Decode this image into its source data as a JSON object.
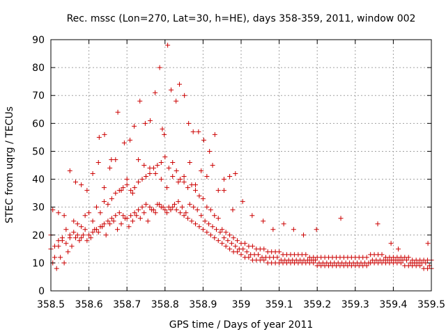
{
  "chart_data": {
    "type": "scatter",
    "title": "Rec. mssc (Lon=270, Lat=30, h=HE), days 358-359, 2011, window 002",
    "xlabel": "GPS time / Days of year 2011",
    "ylabel": "STEC from uqrg / TECUs",
    "xlim": [
      358.5,
      359.5
    ],
    "ylim": [
      0,
      90
    ],
    "xticks": [
      358.5,
      358.6,
      358.7,
      358.8,
      358.9,
      359.0,
      359.1,
      359.2,
      359.3,
      359.4,
      359.5
    ],
    "xtick_labels": [
      "358.5",
      "358.6",
      "358.7",
      "358.8",
      "358.9",
      "359",
      "359.1",
      "359.2",
      "359.3",
      "359.4",
      "359.5"
    ],
    "yticks": [
      0,
      10,
      20,
      30,
      40,
      50,
      60,
      70,
      80,
      90
    ],
    "ytick_labels": [
      "0",
      "10",
      "20",
      "30",
      "40",
      "50",
      "60",
      "70",
      "80",
      "90"
    ],
    "grid": true,
    "marker": "+",
    "series": [
      {
        "name": "STEC",
        "color": "#cc0000",
        "x": [
          358.5,
          358.51,
          358.52,
          358.53,
          358.54,
          358.55,
          358.56,
          358.57,
          358.58,
          358.59,
          358.6,
          358.61,
          358.62,
          358.63,
          358.64,
          358.65,
          358.66,
          358.67,
          358.68,
          358.69,
          358.7,
          358.71,
          358.72,
          358.73,
          358.74,
          358.75,
          358.76,
          358.77,
          358.78,
          358.79,
          358.8,
          358.81,
          358.82,
          358.83,
          358.84,
          358.85,
          358.86,
          358.87,
          358.88,
          358.89,
          358.9,
          358.91,
          358.92,
          358.93,
          358.94,
          358.95,
          358.96,
          358.97,
          358.98,
          358.99,
          359.0,
          359.01,
          359.02,
          359.03,
          359.04,
          359.05,
          359.06,
          359.07,
          359.08,
          359.09,
          359.1,
          359.11,
          359.12,
          359.13,
          359.14,
          359.15,
          359.16,
          359.17,
          359.18,
          359.19,
          359.2,
          359.21,
          359.22,
          359.23,
          359.24,
          359.25,
          359.26,
          359.27,
          359.28,
          359.29,
          359.3,
          359.31,
          359.32,
          359.33,
          359.34,
          359.35,
          359.36,
          359.37,
          359.38,
          359.39,
          359.4,
          359.41,
          359.42,
          359.43,
          359.44,
          359.45,
          359.46,
          359.47,
          359.48,
          359.49,
          359.5,
          358.5,
          358.51,
          358.52,
          358.53,
          358.54,
          358.55,
          358.56,
          358.57,
          358.58,
          358.59,
          358.6,
          358.61,
          358.62,
          358.63,
          358.64,
          358.65,
          358.66,
          358.67,
          358.68,
          358.69,
          358.7,
          358.71,
          358.72,
          358.73,
          358.74,
          358.75,
          358.76,
          358.77,
          358.78,
          358.79,
          358.8,
          358.81,
          358.82,
          358.83,
          358.84,
          358.85,
          358.86,
          358.87,
          358.88,
          358.89,
          358.9,
          358.91,
          358.92,
          358.93,
          358.94,
          358.95,
          358.96,
          358.97,
          358.98,
          358.99,
          359.0,
          359.01,
          359.02,
          359.03,
          359.04,
          359.05,
          359.06,
          359.07,
          359.08,
          359.09,
          359.1,
          359.11,
          359.12,
          359.13,
          359.14,
          359.15,
          359.16,
          359.17,
          359.18,
          359.19,
          359.2,
          359.21,
          359.22,
          359.23,
          359.24,
          359.25,
          359.26,
          359.27,
          359.28,
          359.29,
          359.3,
          359.31,
          359.32,
          359.33,
          359.34,
          359.35,
          359.36,
          359.37,
          359.38,
          359.39,
          359.4,
          359.41,
          359.42,
          359.43,
          359.44,
          359.45,
          359.46,
          359.47,
          359.48,
          359.49,
          359.5,
          358.505,
          358.515,
          358.525,
          358.535,
          358.545,
          358.555,
          358.565,
          358.575,
          358.585,
          358.595,
          358.605,
          358.615,
          358.625,
          358.635,
          358.645,
          358.655,
          358.665,
          358.675,
          358.685,
          358.695,
          358.705,
          358.715,
          358.725,
          358.735,
          358.745,
          358.755,
          358.765,
          358.775,
          358.785,
          358.795,
          358.805,
          358.815,
          358.825,
          358.835,
          358.845,
          358.855,
          358.865,
          358.875,
          358.885,
          358.895,
          358.905,
          358.915,
          358.925,
          358.935,
          358.945,
          358.955,
          358.965,
          358.975,
          358.985,
          358.995,
          359.005,
          359.015,
          359.025,
          359.035,
          359.045,
          359.055,
          359.065,
          359.075,
          359.085,
          359.095,
          359.105,
          359.115,
          359.125,
          359.135,
          359.145,
          359.155,
          359.165,
          359.175,
          359.185,
          359.195,
          359.205,
          359.215,
          359.225,
          359.235,
          359.245,
          359.255,
          359.265,
          359.275,
          359.285,
          359.295,
          359.305,
          359.315,
          359.325,
          359.335,
          359.345,
          359.355,
          359.365,
          359.375,
          359.385,
          359.395,
          359.405,
          359.415,
          359.425,
          359.435,
          359.445,
          359.455,
          359.465,
          359.475,
          359.485,
          359.495,
          358.505,
          358.52,
          358.535,
          358.55,
          358.565,
          358.58,
          358.595,
          358.61,
          358.625,
          358.64,
          358.655,
          358.67,
          358.685,
          358.7,
          358.715,
          358.73,
          358.745,
          358.76,
          358.775,
          358.79,
          358.805,
          358.82,
          358.835,
          358.85,
          358.865,
          358.88,
          358.895,
          358.91,
          358.925,
          358.94,
          358.955,
          358.97,
          358.985,
          358.627,
          358.641,
          358.659,
          358.676,
          358.693,
          358.708,
          358.719,
          358.734,
          358.748,
          358.761,
          358.774,
          358.786,
          358.793,
          358.798,
          358.807,
          358.816,
          358.829,
          358.838,
          358.851,
          358.862,
          358.874,
          358.888,
          358.902,
          358.917,
          358.931,
          358.955,
          358.978,
          359.004,
          359.029,
          359.058,
          359.084,
          359.112,
          359.138,
          359.164,
          359.198,
          359.262,
          359.359,
          359.394,
          359.413,
          359.491
        ],
        "y": [
          20,
          12,
          16,
          18,
          22,
          19,
          21,
          20,
          19,
          22,
          20,
          21,
          22,
          23,
          24,
          25,
          26,
          27,
          28,
          27,
          26,
          27,
          28,
          29,
          30,
          31,
          30,
          29,
          31,
          30,
          29,
          30,
          30,
          29,
          28,
          27,
          26,
          25,
          24,
          23,
          22,
          21,
          20,
          19,
          18,
          17,
          16,
          15,
          14,
          14,
          13,
          12,
          12,
          11,
          11,
          11,
          11,
          10,
          10,
          10,
          10,
          10,
          10,
          10,
          10,
          10,
          10,
          10,
          10,
          10,
          9,
          9,
          9,
          9,
          9,
          9,
          9,
          9,
          9,
          9,
          9,
          9,
          9,
          9,
          10,
          10,
          10,
          10,
          10,
          10,
          10,
          10,
          10,
          9,
          9,
          9,
          9,
          9,
          8,
          8,
          8,
          15,
          16,
          18,
          19,
          17,
          20,
          25,
          24,
          23,
          27,
          28,
          25,
          30,
          28,
          32,
          31,
          33,
          35,
          36,
          37,
          38,
          36,
          37,
          39,
          40,
          41,
          42,
          44,
          45,
          46,
          48,
          44,
          46,
          43,
          40,
          39,
          37,
          38,
          36,
          34,
          33,
          30,
          29,
          27,
          26,
          22,
          21,
          20,
          19,
          18,
          17,
          17,
          16,
          16,
          15,
          15,
          15,
          14,
          14,
          14,
          14,
          13,
          13,
          13,
          13,
          13,
          13,
          13,
          12,
          12,
          12,
          12,
          12,
          12,
          12,
          12,
          12,
          12,
          12,
          12,
          12,
          12,
          12,
          12,
          13,
          13,
          13,
          13,
          12,
          12,
          12,
          12,
          12,
          12,
          12,
          11,
          11,
          11,
          11,
          11,
          11,
          10,
          8,
          12,
          10,
          14,
          16,
          19,
          18,
          20,
          18,
          19,
          22,
          21,
          23,
          20,
          24,
          25,
          22,
          24,
          26,
          23,
          25,
          27,
          26,
          28,
          25,
          29,
          28,
          31,
          30,
          28,
          29,
          31,
          32,
          30,
          28,
          31,
          30,
          29,
          27,
          25,
          24,
          23,
          22,
          21,
          19,
          18,
          17,
          16,
          15,
          15,
          14,
          13,
          13,
          13,
          12,
          12,
          12,
          12,
          12,
          11,
          11,
          11,
          11,
          11,
          11,
          11,
          11,
          11,
          11,
          10,
          10,
          10,
          10,
          10,
          10,
          10,
          10,
          10,
          10,
          10,
          10,
          10,
          10,
          11,
          11,
          11,
          11,
          11,
          11,
          11,
          11,
          11,
          11,
          10,
          10,
          10,
          10,
          10,
          9,
          29,
          28,
          27,
          43,
          39,
          38,
          36,
          42,
          46,
          37,
          44,
          47,
          36,
          40,
          35,
          47,
          45,
          44,
          42,
          40,
          37,
          41,
          39,
          41,
          46,
          38,
          43,
          41,
          45,
          36,
          40,
          41,
          42,
          55,
          56,
          47,
          64,
          53,
          54,
          59,
          68,
          60,
          61,
          71,
          80,
          58,
          56,
          88,
          72,
          68,
          74,
          70,
          60,
          57,
          57,
          54,
          50,
          56,
          36,
          29,
          32,
          27,
          25,
          22,
          24,
          22,
          20,
          22,
          26,
          24,
          17,
          15,
          17
        ]
      }
    ]
  }
}
